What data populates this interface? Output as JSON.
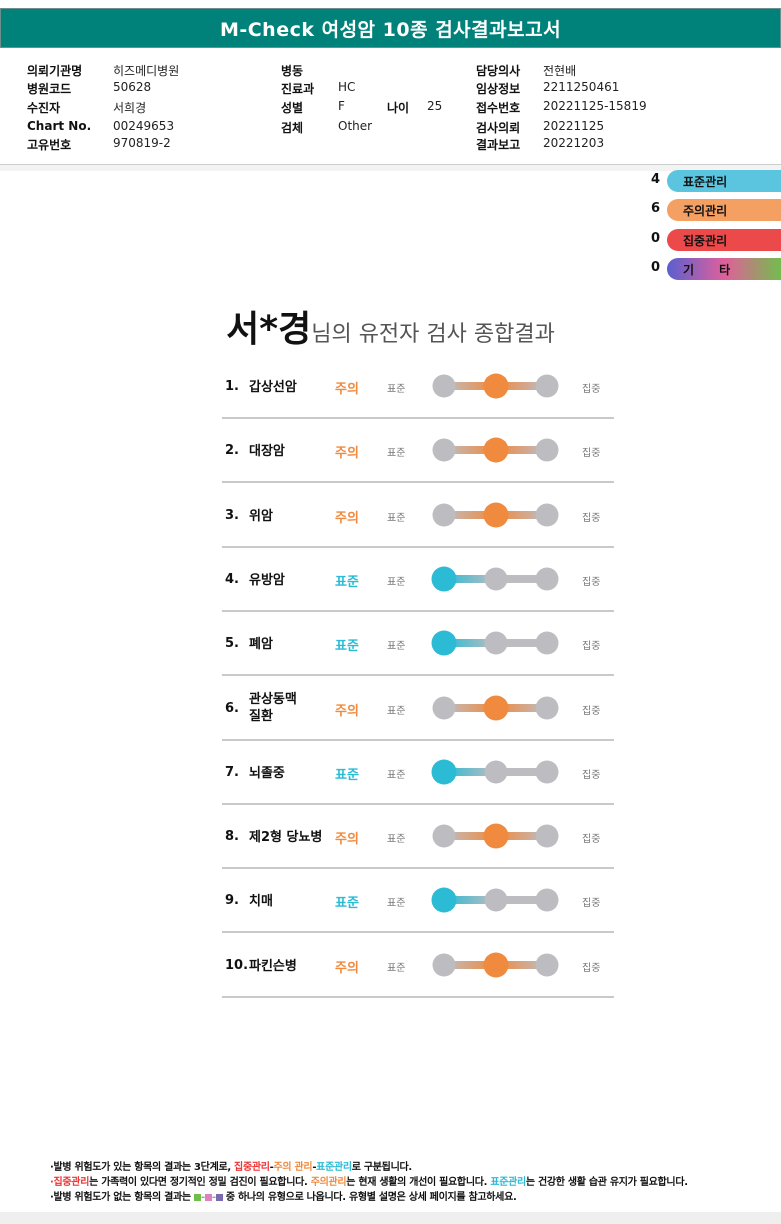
{
  "title": "M-Check 여성암 10종 검사결과보고서",
  "info": [
    {
      "label": "의뢰기관명",
      "value": "히즈메디병원"
    },
    {
      "label": "병원코드",
      "value": "50628"
    },
    {
      "label": "수진자",
      "value": "서희경"
    },
    {
      "label": "Chart No.",
      "value": "00249653"
    },
    {
      "label": "고유번호",
      "value": "970819-2"
    },
    {
      "label": "병동",
      "value": ""
    },
    {
      "label": "진료과",
      "value": "HC"
    },
    {
      "label": "성별",
      "value": "F"
    },
    {
      "label": "나이",
      "value": "25"
    },
    {
      "label": "검체",
      "value": "Other"
    },
    {
      "label": "담당의사",
      "value": "전현배"
    },
    {
      "label": "임상정보",
      "value": "2211250461"
    },
    {
      "label": "접수번호",
      "value": "20221125-15819"
    },
    {
      "label": "검사의뢰",
      "value": "20221125"
    },
    {
      "label": "결과보고",
      "value": "20221203"
    }
  ],
  "legend": [
    {
      "count": "4",
      "label": "표준관리",
      "color": "#5bc5e0"
    },
    {
      "count": "6",
      "label": "주의관리",
      "color": "#f4a062"
    },
    {
      "count": "0",
      "label": "집중관리",
      "color": "#ec4a4a"
    },
    {
      "count": "0",
      "label": "기      타",
      "colors": [
        "#5b5fd0",
        "#e0609a",
        "#6fc04a"
      ]
    }
  ],
  "summary": {
    "name": "서*경",
    "suffix": "님의 유전자 검사 종합결과"
  },
  "gauge_labels": {
    "standard": "표준",
    "intensive": "집중"
  },
  "status_colors": {
    "주의": "#f08a3e",
    "표준": "#2bbbd4",
    "gray": "#bdbdc1"
  },
  "results": [
    {
      "num": "1.",
      "name": "갑상선암",
      "status": "주의",
      "level": 2
    },
    {
      "num": "2.",
      "name": "대장암",
      "status": "주의",
      "level": 2
    },
    {
      "num": "3.",
      "name": "위암",
      "status": "주의",
      "level": 2
    },
    {
      "num": "4.",
      "name": "유방암",
      "status": "표준",
      "level": 1
    },
    {
      "num": "5.",
      "name": "폐암",
      "status": "표준",
      "level": 1
    },
    {
      "num": "6.",
      "name": "관상동맥\n질환",
      "status": "주의",
      "level": 2
    },
    {
      "num": "7.",
      "name": "뇌졸중",
      "status": "표준",
      "level": 1
    },
    {
      "num": "8.",
      "name": "제2형 당뇨병",
      "status": "주의",
      "level": 2
    },
    {
      "num": "9.",
      "name": "치매",
      "status": "표준",
      "level": 1
    },
    {
      "num": "10.",
      "name": "파킨슨병",
      "status": "주의",
      "level": 2
    }
  ],
  "notes": {
    "line1": {
      "a": "·발병 위험도가 있는 항목의 결과는 3단계로, ",
      "red": "집중관리",
      "sep1": "-",
      "orange": "주의 관리",
      "sep2": "-",
      "blue": "표준관리",
      "b": "로 구분됩니다."
    },
    "line2": {
      "red": "·집중관리",
      "a": "는 가족력이 있다면 정기적인 정밀 검진이 필요합니다. ",
      "orange": "주의관리",
      "b": "는 현재 생활의 개선이 필요합니다. ",
      "blue": "표준관리",
      "c": "는 건강한 생활 습관 유지가 필요합니다."
    },
    "line3": {
      "a": "·발병 위험도가 없는 항목의 결과는 ",
      "b": " 중 하나의 유형으로 나옵니다. 유형별 설명은 상세 페이지를 참고하세요."
    }
  }
}
